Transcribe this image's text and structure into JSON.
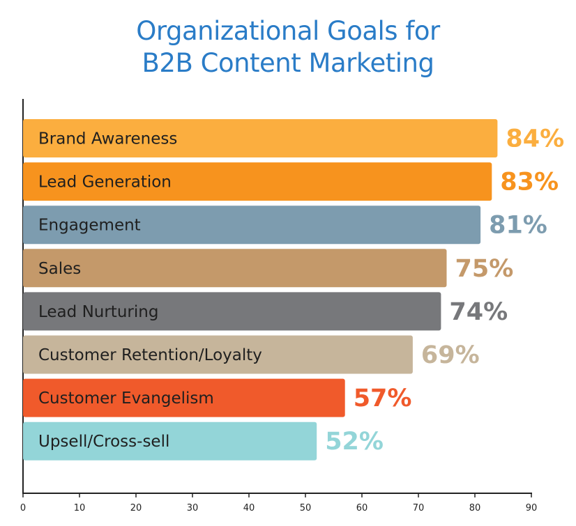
{
  "chart_data": {
    "type": "bar",
    "orientation": "horizontal",
    "title_lines": [
      "Organizational Goals for",
      "B2B Content Marketing"
    ],
    "categories": [
      "Brand Awareness",
      "Lead Generation",
      "Engagement",
      "Sales",
      "Lead Nurturing",
      "Customer Retention/Loyalty",
      "Customer Evangelism",
      "Upsell/Cross-sell"
    ],
    "values": [
      84,
      83,
      81,
      75,
      74,
      69,
      57,
      52
    ],
    "value_labels": [
      "84%",
      "83%",
      "81%",
      "75%",
      "74%",
      "69%",
      "57%",
      "52%"
    ],
    "colors": [
      "#fbae3f",
      "#f7931e",
      "#7d9caf",
      "#c4996a",
      "#77787b",
      "#c6b59b",
      "#f05a2b",
      "#93d5d8"
    ],
    "xlim": [
      0,
      90
    ],
    "x_ticks": [
      0,
      10,
      20,
      30,
      40,
      50,
      60,
      70,
      80,
      90
    ],
    "grid": false,
    "legend": "none"
  }
}
